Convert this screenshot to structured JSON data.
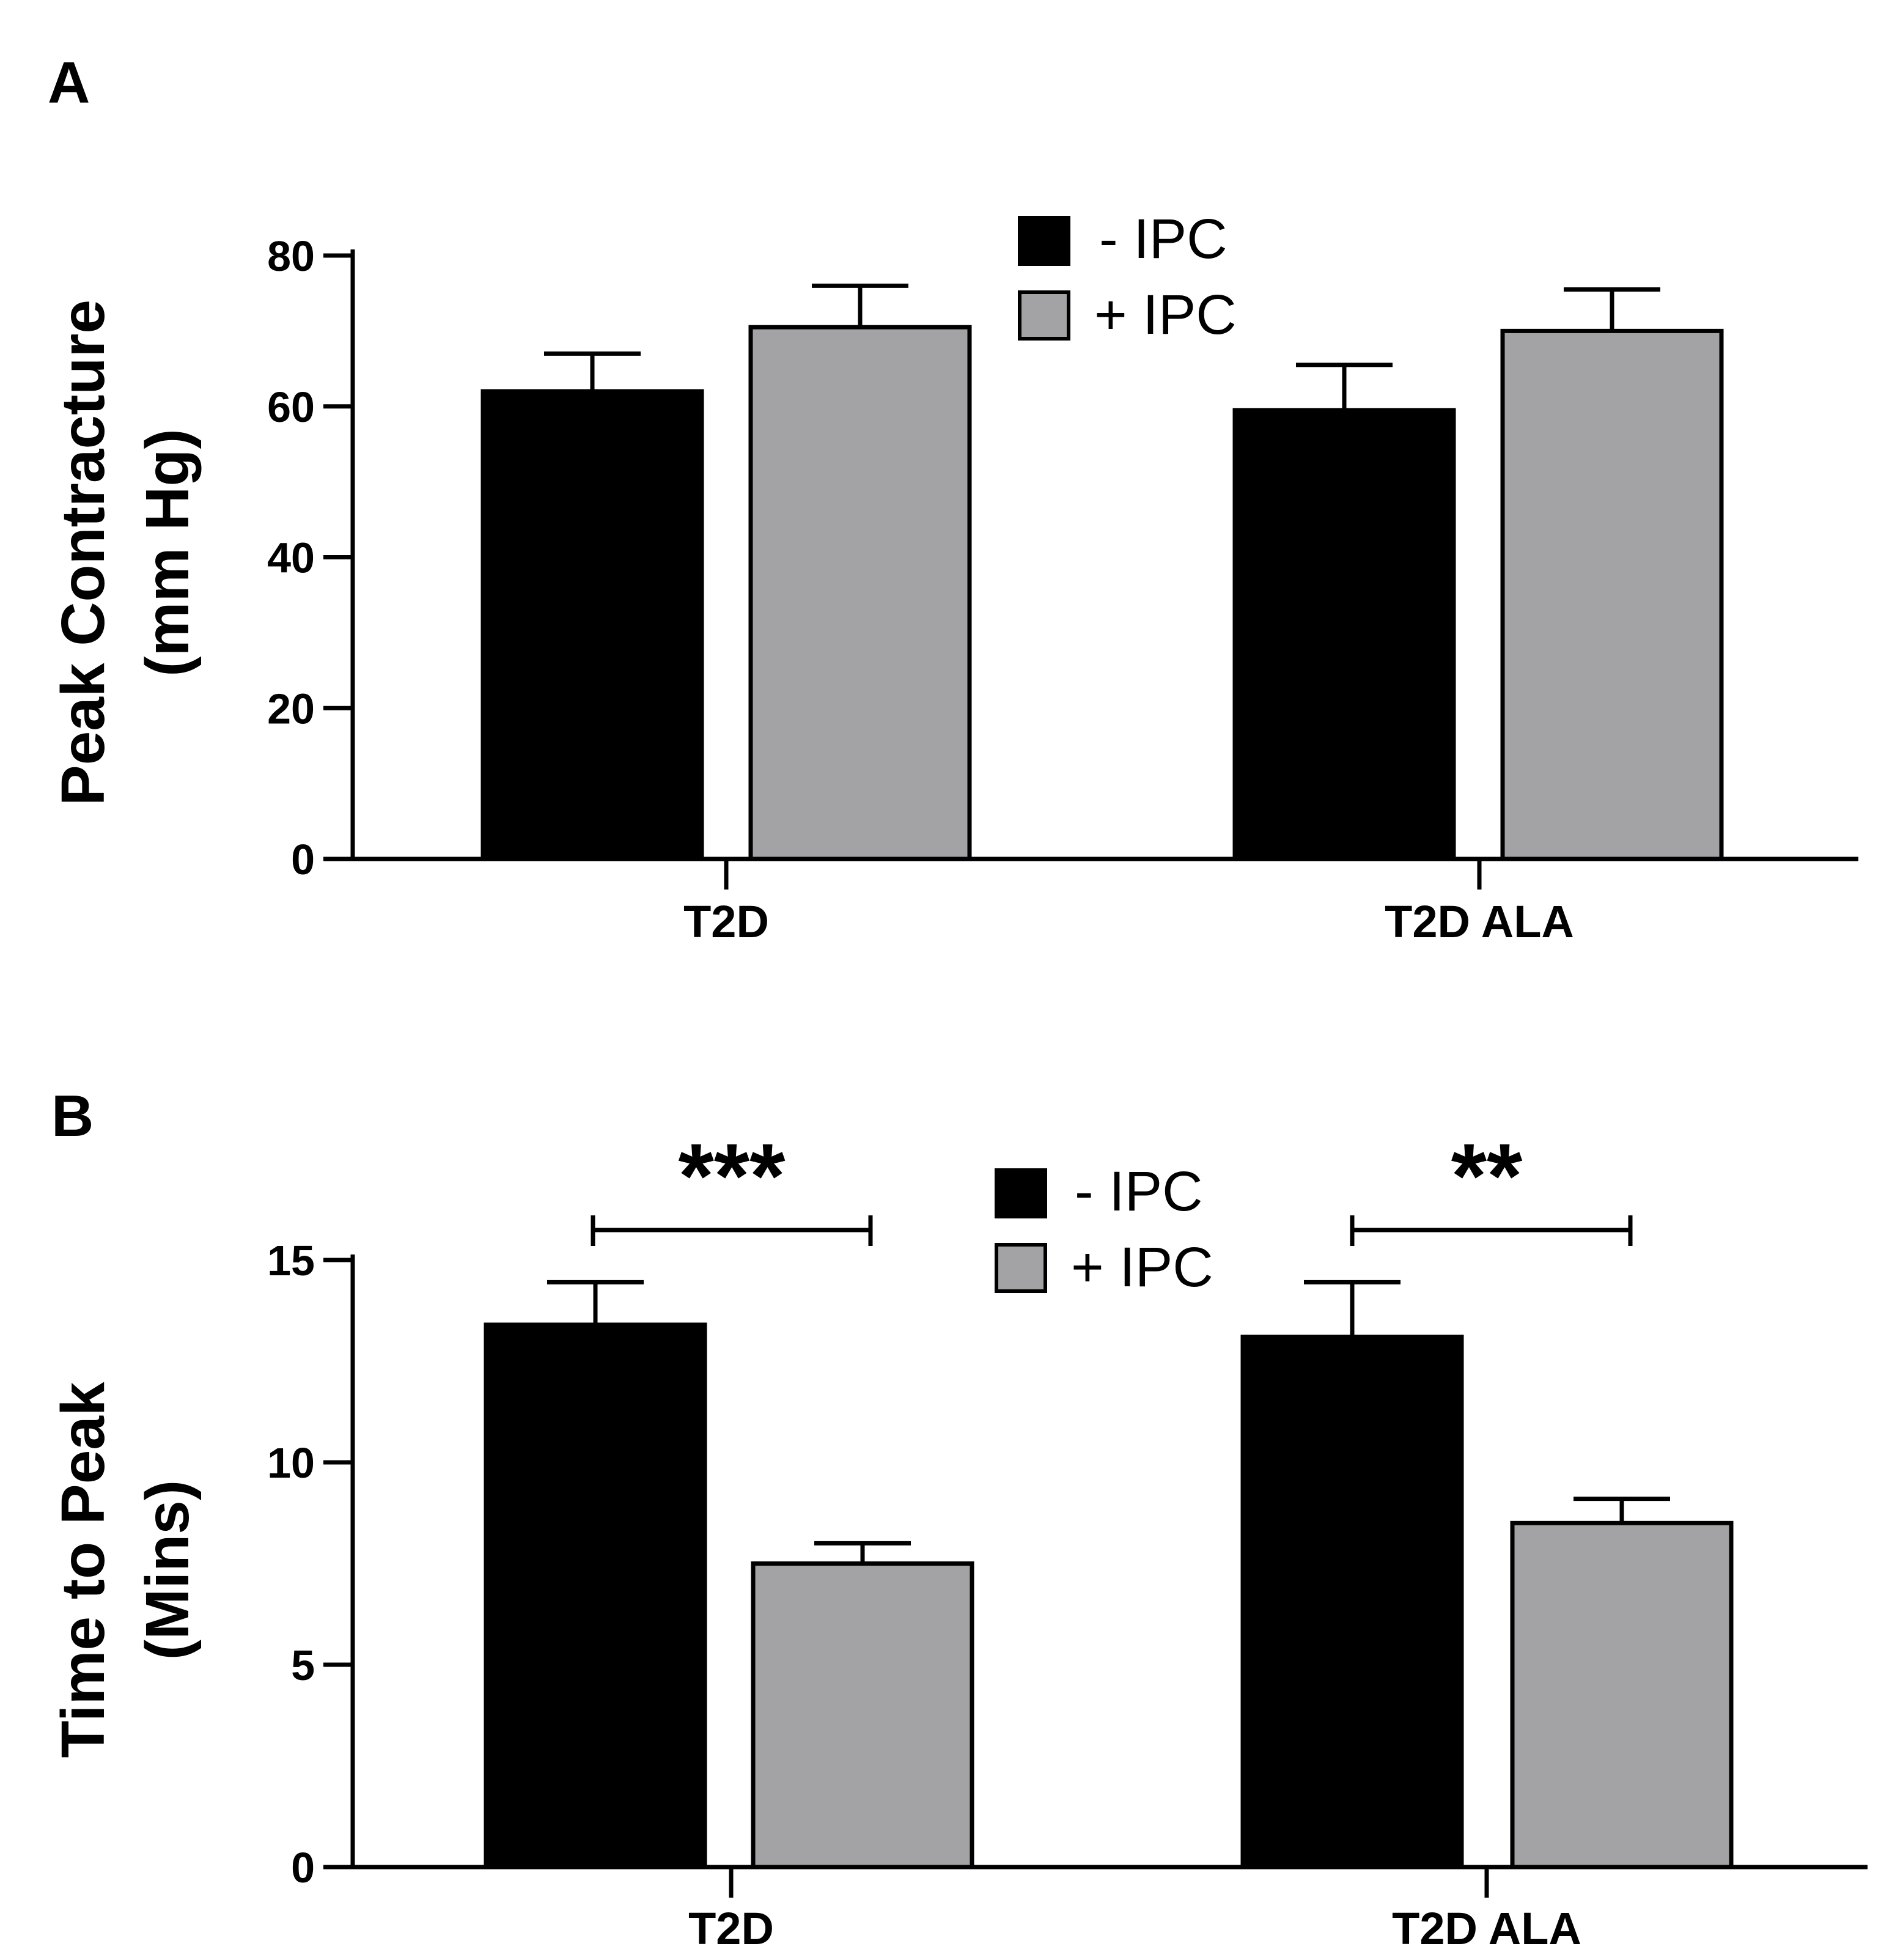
{
  "colors": {
    "minus_ipc": "#000000",
    "plus_ipc": "#a3a3a6",
    "axis": "#000000"
  },
  "chart_data": [
    {
      "panel": "A",
      "type": "bar",
      "title": "",
      "xlabel": "",
      "ylabel": [
        "Peak  Contracture",
        "(mm Hg)"
      ],
      "categories": [
        "T2D",
        "T2D ALA"
      ],
      "series": [
        {
          "name": "- IPC",
          "color": "#000000",
          "values": [
            62,
            59.5
          ],
          "errors": [
            5,
            6
          ]
        },
        {
          "name": "+ IPC",
          "color": "#a3a3a6",
          "values": [
            70.5,
            70
          ],
          "errors": [
            5.5,
            5.5
          ]
        }
      ],
      "ylim": [
        0,
        80
      ],
      "yticks": [
        "0",
        "20",
        "40",
        "60",
        "80"
      ],
      "legend": "top-center",
      "grid": false,
      "annotations": []
    },
    {
      "panel": "B",
      "type": "bar",
      "title": "",
      "xlabel": "",
      "ylabel": [
        "Time to Peak",
        "(Mins)"
      ],
      "categories": [
        "T2D",
        "T2D ALA"
      ],
      "series": [
        {
          "name": "- IPC",
          "color": "#000000",
          "values": [
            13.4,
            13.1
          ],
          "errors": [
            1.05,
            1.35
          ]
        },
        {
          "name": "+ IPC",
          "color": "#a3a3a6",
          "values": [
            7.5,
            8.5
          ],
          "errors": [
            0.5,
            0.6
          ]
        }
      ],
      "ylim": [
        0,
        15
      ],
      "yticks": [
        "0",
        "5",
        "10",
        "15"
      ],
      "legend": "top-center",
      "grid": false,
      "annotations": [
        {
          "category": "T2D",
          "text": "***"
        },
        {
          "category": "T2D ALA",
          "text": "**"
        }
      ]
    }
  ]
}
